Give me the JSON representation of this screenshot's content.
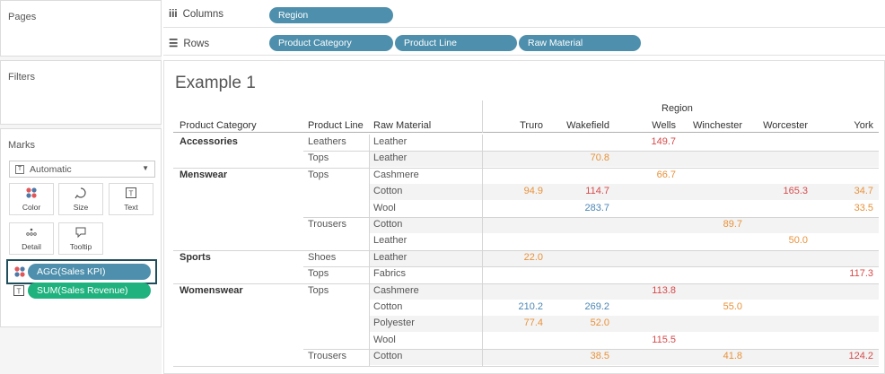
{
  "sidebar": {
    "pages_title": "Pages",
    "filters_title": "Filters",
    "marks_title": "Marks",
    "mark_type": "Automatic",
    "cards": [
      {
        "label": "Color",
        "icon": "color-dots-icon"
      },
      {
        "label": "Size",
        "icon": "size-icon"
      },
      {
        "label": "Text",
        "icon": "text-icon"
      },
      {
        "label": "Detail",
        "icon": "detail-icon"
      },
      {
        "label": "Tooltip",
        "icon": "tooltip-icon"
      }
    ],
    "mark_fields": [
      {
        "label": "AGG(Sales KPI)",
        "icon": "color-dots-icon",
        "color": "#4d8fac"
      },
      {
        "label": "SUM(Sales Revenue)",
        "icon": "text-icon",
        "color": "#1fb27f"
      }
    ]
  },
  "shelves": {
    "columns_label": "Columns",
    "rows_label": "Rows",
    "columns": [
      "Region"
    ],
    "rows": [
      "Product Category",
      "Product Line",
      "Raw Material"
    ]
  },
  "view": {
    "title": "Example 1",
    "region_header": "Region",
    "col_headers": {
      "category": "Product Category",
      "line": "Product Line",
      "material": "Raw Material",
      "regions": [
        "Truro",
        "Wakefield",
        "Wells",
        "Winchester",
        "Worcester",
        "York"
      ]
    },
    "rows": [
      {
        "category": "Accessories",
        "line": "Leathers",
        "material": "Leather",
        "values": [
          "",
          "",
          "149.7",
          "",
          "",
          ""
        ],
        "colors": [
          "",
          "",
          "red",
          "",
          "",
          ""
        ]
      },
      {
        "category": "",
        "line": "Tops",
        "material": "Leather",
        "values": [
          "",
          "70.8",
          "",
          "",
          "",
          ""
        ],
        "colors": [
          "",
          "orange",
          "",
          "",
          "",
          ""
        ]
      },
      {
        "category": "Menswear",
        "line": "Tops",
        "material": "Cashmere",
        "values": [
          "",
          "",
          "66.7",
          "",
          "",
          ""
        ],
        "colors": [
          "",
          "",
          "orange",
          "",
          "",
          ""
        ]
      },
      {
        "category": "",
        "line": "",
        "material": "Cotton",
        "values": [
          "94.9",
          "114.7",
          "",
          "",
          "165.3",
          "34.7"
        ],
        "colors": [
          "orange",
          "red",
          "",
          "",
          "red",
          "orange"
        ]
      },
      {
        "category": "",
        "line": "",
        "material": "Wool",
        "values": [
          "",
          "283.7",
          "",
          "",
          "",
          "33.5"
        ],
        "colors": [
          "",
          "blue",
          "",
          "",
          "",
          "orange"
        ]
      },
      {
        "category": "",
        "line": "Trousers",
        "material": "Cotton",
        "values": [
          "",
          "",
          "",
          "89.7",
          "",
          ""
        ],
        "colors": [
          "",
          "",
          "",
          "orange",
          "",
          ""
        ]
      },
      {
        "category": "",
        "line": "",
        "material": "Leather",
        "values": [
          "",
          "",
          "",
          "",
          "50.0",
          ""
        ],
        "colors": [
          "",
          "",
          "",
          "",
          "orange",
          ""
        ]
      },
      {
        "category": "Sports",
        "line": "Shoes",
        "material": "Leather",
        "values": [
          "22.0",
          "",
          "",
          "",
          "",
          ""
        ],
        "colors": [
          "orange",
          "",
          "",
          "",
          "",
          ""
        ]
      },
      {
        "category": "",
        "line": "Tops",
        "material": "Fabrics",
        "values": [
          "",
          "",
          "",
          "",
          "",
          "117.3"
        ],
        "colors": [
          "",
          "",
          "",
          "",
          "",
          "red"
        ]
      },
      {
        "category": "Womenswear",
        "line": "Tops",
        "material": "Cashmere",
        "values": [
          "",
          "",
          "113.8",
          "",
          "",
          ""
        ],
        "colors": [
          "",
          "",
          "red",
          "",
          "",
          ""
        ]
      },
      {
        "category": "",
        "line": "",
        "material": "Cotton",
        "values": [
          "210.2",
          "269.2",
          "",
          "55.0",
          "",
          ""
        ],
        "colors": [
          "blue",
          "blue",
          "",
          "orange",
          "",
          ""
        ]
      },
      {
        "category": "",
        "line": "",
        "material": "Polyester",
        "values": [
          "77.4",
          "52.0",
          "",
          "",
          "",
          ""
        ],
        "colors": [
          "orange",
          "orange",
          "",
          "",
          "",
          ""
        ]
      },
      {
        "category": "",
        "line": "",
        "material": "Wool",
        "values": [
          "",
          "",
          "115.5",
          "",
          "",
          ""
        ],
        "colors": [
          "",
          "",
          "red",
          "",
          "",
          ""
        ]
      },
      {
        "category": "",
        "line": "Trousers",
        "material": "Cotton",
        "values": [
          "",
          "38.5",
          "",
          "41.8",
          "",
          "124.2"
        ],
        "colors": [
          "",
          "orange",
          "",
          "orange",
          "",
          "red"
        ]
      }
    ]
  },
  "colors": {
    "orange": "#e8923a",
    "red": "#d74a4a",
    "blue": "#4b86b4",
    "pill": "#4d8fac",
    "pill_green": "#1fb27f"
  }
}
